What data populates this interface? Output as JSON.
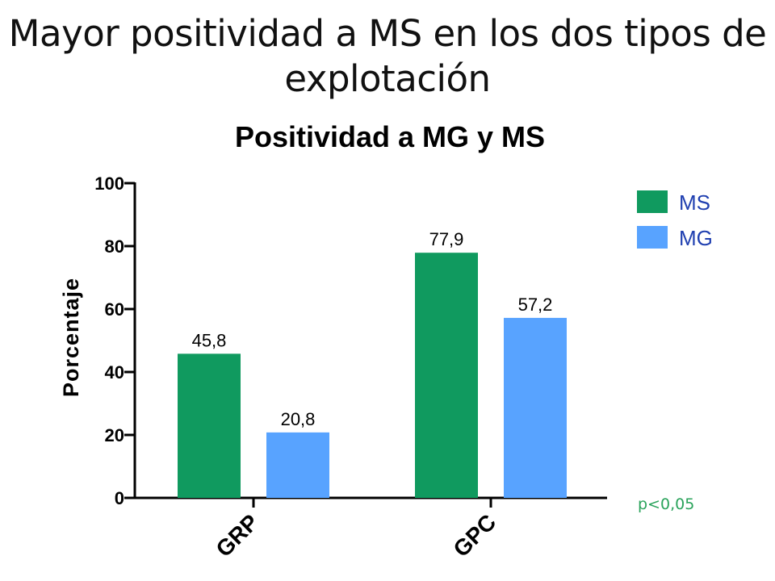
{
  "slide": {
    "title": "Mayor positividad a MS en los dos tipos de explotación"
  },
  "chart_data": {
    "type": "bar",
    "title": "Positividad a MG y MS",
    "xlabel": "",
    "ylabel": "Porcentaje",
    "categories": [
      "GRP",
      "GPC"
    ],
    "series": [
      {
        "name": "MS",
        "color": "#109a5f",
        "values": [
          45.8,
          77.9
        ],
        "labels": [
          "45,8",
          "77,9"
        ]
      },
      {
        "name": "MG",
        "color": "#58a3ff",
        "values": [
          20.8,
          57.2
        ],
        "labels": [
          "20,8",
          "57,2"
        ]
      }
    ],
    "ylim": [
      0,
      100
    ],
    "yticks": [
      0,
      20,
      40,
      60,
      80,
      100
    ],
    "grid": false,
    "legend_position": "top-right",
    "annotation": {
      "text": "p<0,05",
      "color": "#2aa35b"
    }
  }
}
